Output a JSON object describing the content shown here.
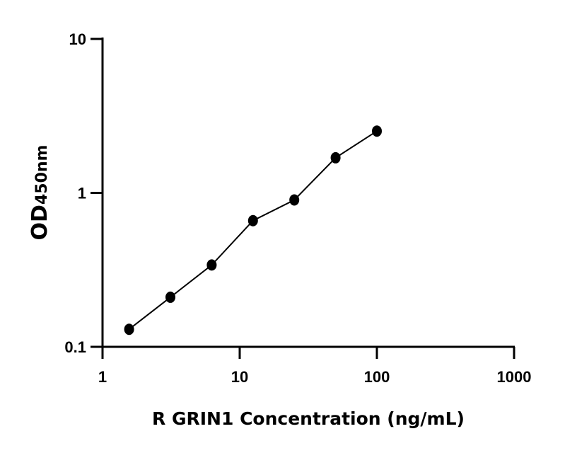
{
  "chart_data": {
    "type": "scatter",
    "title": "",
    "xlabel": "R GRIN1 Concentration (ng/mL)",
    "ylabel_main": "OD",
    "ylabel_sub": "450nm",
    "x_scale": "log",
    "y_scale": "log",
    "xlim": [
      1,
      1000
    ],
    "ylim": [
      0.1,
      10
    ],
    "x_ticks": [
      "1",
      "10",
      "100",
      "1000"
    ],
    "y_ticks": [
      "0.1",
      "1",
      "10"
    ],
    "grid": false,
    "fit_curve": true,
    "marker_color": "#000000",
    "points": [
      {
        "x": 1.5625,
        "y": 0.13
      },
      {
        "x": 3.125,
        "y": 0.21
      },
      {
        "x": 6.25,
        "y": 0.34
      },
      {
        "x": 12.5,
        "y": 0.66
      },
      {
        "x": 25,
        "y": 0.9
      },
      {
        "x": 50,
        "y": 1.69
      },
      {
        "x": 100,
        "y": 2.52
      }
    ]
  }
}
